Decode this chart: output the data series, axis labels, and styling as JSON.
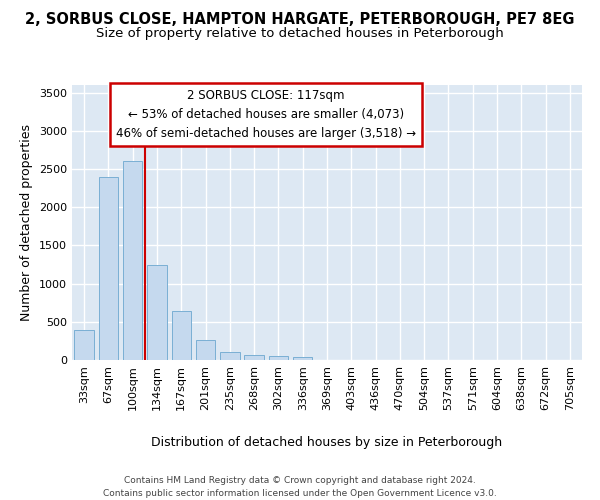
{
  "title": "2, SORBUS CLOSE, HAMPTON HARGATE, PETERBOROUGH, PE7 8EG",
  "subtitle": "Size of property relative to detached houses in Peterborough",
  "xlabel": "Distribution of detached houses by size in Peterborough",
  "ylabel": "Number of detached properties",
  "categories": [
    "33sqm",
    "67sqm",
    "100sqm",
    "134sqm",
    "167sqm",
    "201sqm",
    "235sqm",
    "268sqm",
    "302sqm",
    "336sqm",
    "369sqm",
    "403sqm",
    "436sqm",
    "470sqm",
    "504sqm",
    "537sqm",
    "571sqm",
    "604sqm",
    "638sqm",
    "672sqm",
    "705sqm"
  ],
  "values": [
    390,
    2400,
    2600,
    1250,
    640,
    260,
    100,
    60,
    55,
    35,
    0,
    0,
    0,
    0,
    0,
    0,
    0,
    0,
    0,
    0,
    0
  ],
  "bar_color": "#c5d9ee",
  "bar_edge_color": "#7aafd4",
  "vline_x": 2.5,
  "vline_color": "#cc0000",
  "annotation_text": "2 SORBUS CLOSE: 117sqm\n← 53% of detached houses are smaller (4,073)\n46% of semi-detached houses are larger (3,518) →",
  "ylim": [
    0,
    3600
  ],
  "yticks": [
    0,
    500,
    1000,
    1500,
    2000,
    2500,
    3000,
    3500
  ],
  "background_color": "#dde8f3",
  "grid_color": "#ffffff",
  "footer_line1": "Contains HM Land Registry data © Crown copyright and database right 2024.",
  "footer_line2": "Contains public sector information licensed under the Open Government Licence v3.0."
}
